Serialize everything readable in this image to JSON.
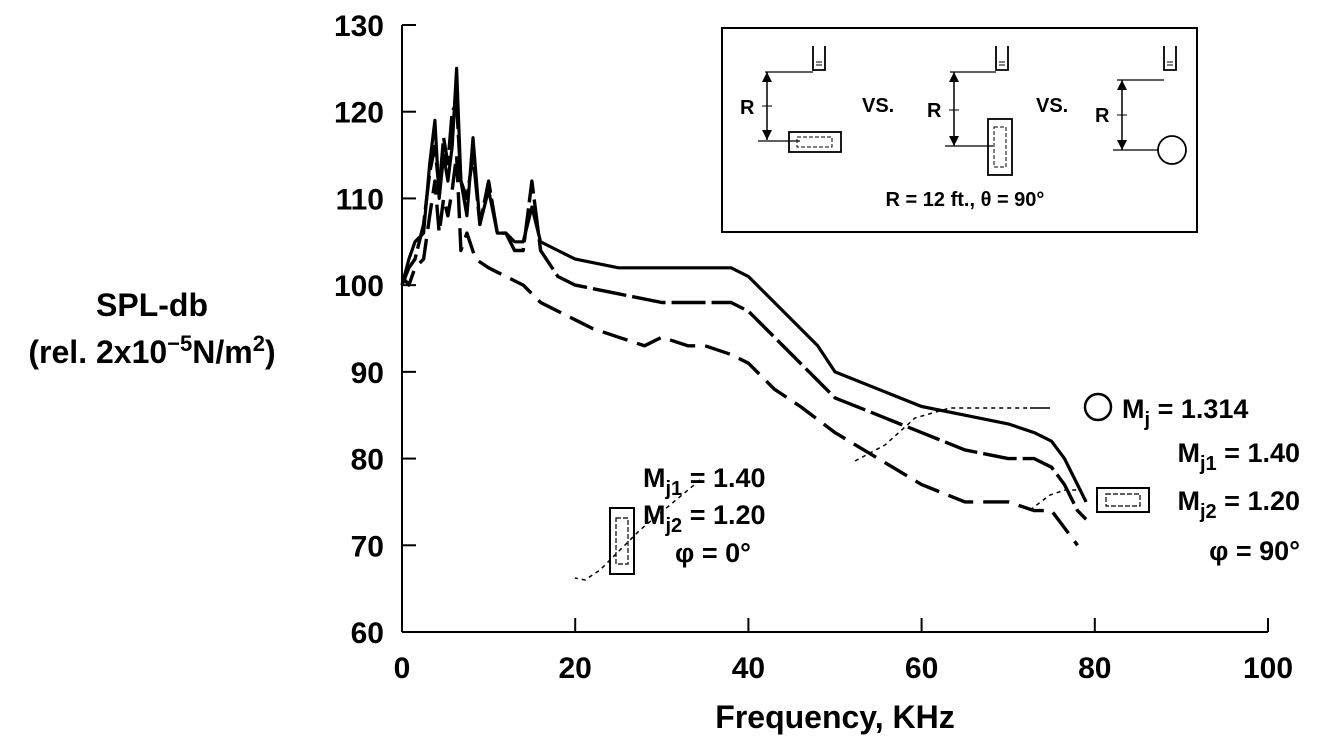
{
  "chart_data": {
    "type": "line",
    "xlabel": "Frequency, KHz",
    "ylabel_line1": "SPL-db",
    "ylabel_line2": "(rel. 2x10",
    "ylabel_sup1": "−5",
    "ylabel_mid": "N/m",
    "ylabel_sup2": "2",
    "ylabel_end": ")",
    "xlim": [
      0,
      100
    ],
    "ylim": [
      60,
      130
    ],
    "xticks": [
      "0",
      "20",
      "40",
      "60",
      "80",
      "100"
    ],
    "yticks": [
      "60",
      "70",
      "80",
      "90",
      "100",
      "110",
      "120",
      "130"
    ],
    "grid": false,
    "series": [
      {
        "style": "solid",
        "x": [
          0,
          0.8,
          1.5,
          2.5,
          3.2,
          3.8,
          4.3,
          4.8,
          5.3,
          5.8,
          6.3,
          6.8,
          7.5,
          8.2,
          9,
          10,
          11,
          12,
          13,
          14,
          15,
          16,
          18,
          20,
          25,
          30,
          35,
          38,
          40,
          42,
          45,
          48,
          50,
          55,
          60,
          65,
          70,
          73,
          75,
          76.5,
          78,
          79
        ],
        "y": [
          100,
          103,
          105,
          106,
          114,
          119,
          110,
          115,
          112,
          116,
          125,
          112,
          108,
          117,
          107,
          111,
          106,
          106,
          105,
          105,
          109,
          105,
          104,
          103,
          102,
          102,
          102,
          102,
          101,
          99,
          96,
          93,
          90,
          88,
          86,
          85,
          84,
          83,
          82,
          80,
          77,
          75
        ]
      },
      {
        "style": "long-dash-medium",
        "x": [
          0,
          0.8,
          1.5,
          2.5,
          3.2,
          3.8,
          4.3,
          4.8,
          5.3,
          5.8,
          6.3,
          6.8,
          7.5,
          8.2,
          9,
          10,
          11,
          12,
          13,
          14,
          15,
          16,
          18,
          20,
          25,
          30,
          35,
          38,
          40,
          42,
          45,
          48,
          50,
          55,
          60,
          65,
          70,
          73,
          75,
          76.5,
          78,
          79
        ],
        "y": [
          100,
          102,
          103,
          107,
          113,
          116,
          111,
          117,
          114,
          120,
          121,
          112,
          110,
          115,
          107,
          112,
          106,
          106,
          104,
          104,
          112,
          104,
          101,
          100,
          99,
          98,
          98,
          98,
          97,
          95,
          92,
          89,
          87,
          85,
          83,
          81,
          80,
          80,
          79,
          77,
          74,
          73
        ]
      },
      {
        "style": "long-dash",
        "x": [
          0,
          0.8,
          1.5,
          2.5,
          3.2,
          3.8,
          4.3,
          4.8,
          5.3,
          5.8,
          6.3,
          6.8,
          7.5,
          8.5,
          10,
          12,
          14,
          16,
          18,
          20,
          22,
          25,
          28,
          30,
          33,
          35,
          38,
          40,
          43,
          46,
          50,
          55,
          60,
          65,
          70,
          73,
          75,
          76.5,
          78
        ],
        "y": [
          101,
          100,
          102,
          103,
          108,
          112,
          106,
          110,
          108,
          111,
          115,
          104,
          106,
          103,
          102,
          101,
          100,
          98,
          97,
          96,
          95,
          94,
          93,
          94,
          93,
          93,
          92,
          91,
          88,
          86,
          83,
          80,
          77,
          75,
          75,
          74,
          74,
          72,
          70
        ]
      }
    ],
    "annotations": {
      "circle": {
        "M": "M",
        "sub": "j",
        "rest": " = 1.314"
      },
      "rect_horizontal": {
        "l1_M": "M",
        "l1_sub": "j1",
        "l1_rest": " = 1.40",
        "l2_M": "M",
        "l2_sub": "j2",
        "l2_rest": " = 1.20",
        "l3": "φ = 90°"
      },
      "rect_vertical": {
        "l1_M": "M",
        "l1_sub": "j1",
        "l1_rest": " = 1.40",
        "l2_M": "M",
        "l2_sub": "j2",
        "l2_rest": " = 1.20",
        "l3": "φ = 0°"
      }
    },
    "inset": {
      "r_label": "R",
      "vs_label": "VS.",
      "caption": "R = 12 ft., θ = 90°"
    }
  }
}
